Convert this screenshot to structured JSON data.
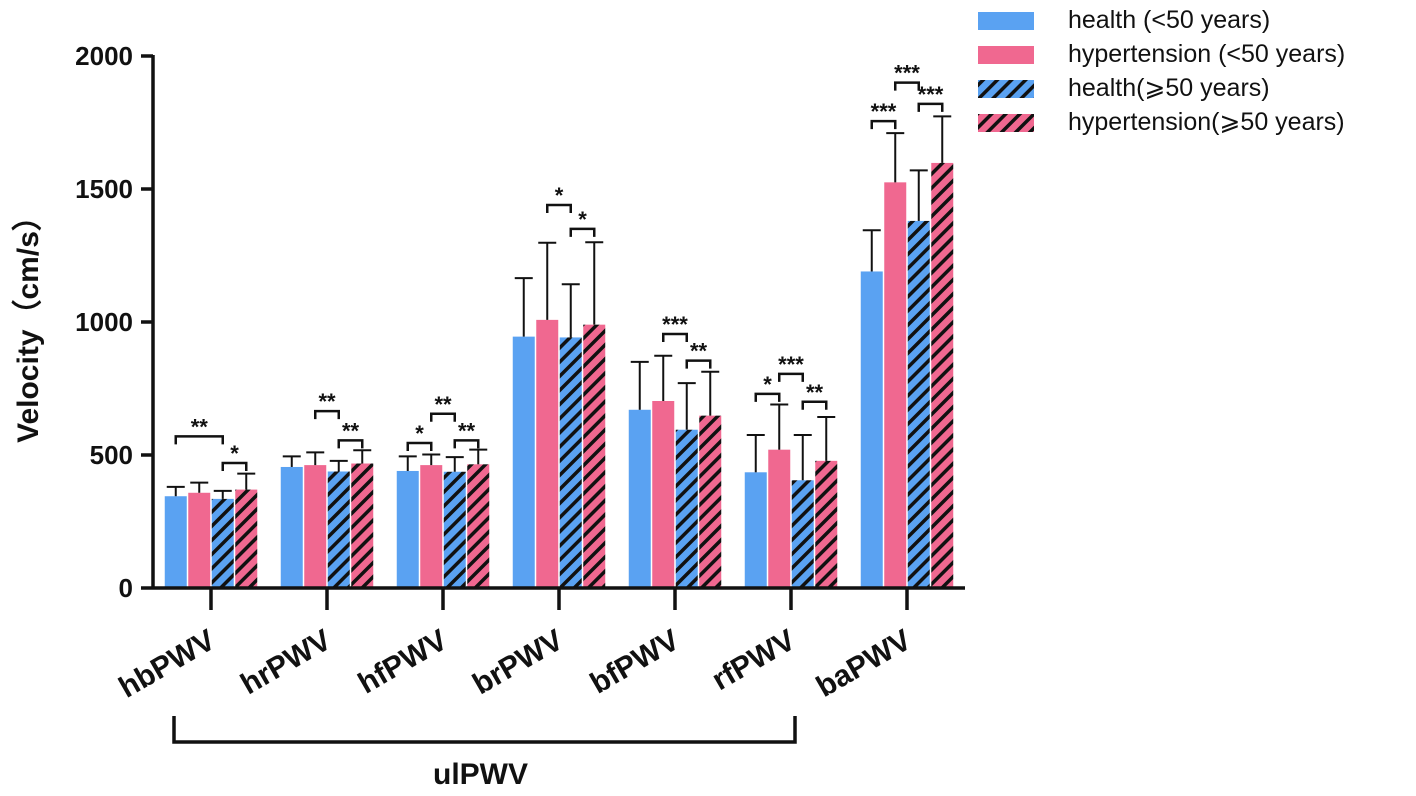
{
  "chart_data": {
    "type": "bar",
    "title": "",
    "xlabel": "",
    "ylabel": "Velocity（cm/s）",
    "ylim": [
      0,
      2000
    ],
    "yticks": [
      "0",
      "500",
      "1000",
      "1500",
      "2000"
    ],
    "ytick_values": [
      0,
      500,
      1000,
      1500,
      2000
    ],
    "grid": false,
    "legend_position": "top-right",
    "categories": [
      "hbPWV",
      "hrPWV",
      "hfPWV",
      "brPWV",
      "bfPWV",
      "rfPWV",
      "baPWV"
    ],
    "series": [
      {
        "name": "health (<50 years)",
        "color": "#5aa2f2",
        "pattern": "solid",
        "values": [
          345,
          455,
          440,
          945,
          670,
          435,
          1190
        ],
        "errors": [
          35,
          40,
          55,
          220,
          180,
          140,
          155
        ]
      },
      {
        "name": "hypertension (<50 years)",
        "color": "#f06890",
        "pattern": "solid",
        "values": [
          358,
          462,
          462,
          1008,
          703,
          520,
          1525
        ],
        "errors": [
          38,
          48,
          40,
          290,
          170,
          170,
          185
        ]
      },
      {
        "name": "health(⩾50 years)",
        "color": "#5aa2f2",
        "pattern": "hatched",
        "values": [
          335,
          438,
          437,
          942,
          595,
          405,
          1380
        ],
        "errors": [
          30,
          40,
          55,
          200,
          175,
          170,
          190
        ]
      },
      {
        "name": "hypertension(⩾50 years)",
        "color": "#f06890",
        "pattern": "hatched",
        "values": [
          370,
          468,
          465,
          990,
          648,
          478,
          1598
        ],
        "errors": [
          60,
          50,
          55,
          310,
          165,
          165,
          175
        ]
      }
    ],
    "significance": [
      {
        "category": 0,
        "from": 0,
        "to": 2,
        "y": 570,
        "label": "**"
      },
      {
        "category": 0,
        "from": 2,
        "to": 3,
        "y": 470,
        "label": "*"
      },
      {
        "category": 1,
        "from": 1,
        "to": 2,
        "y": 665,
        "label": "**"
      },
      {
        "category": 1,
        "from": 2,
        "to": 3,
        "y": 555,
        "label": "**"
      },
      {
        "category": 2,
        "from": 0,
        "to": 1,
        "y": 545,
        "label": "*"
      },
      {
        "category": 2,
        "from": 1,
        "to": 2,
        "y": 655,
        "label": "**"
      },
      {
        "category": 2,
        "from": 2,
        "to": 3,
        "y": 555,
        "label": "**"
      },
      {
        "category": 3,
        "from": 1,
        "to": 2,
        "y": 1440,
        "label": "*"
      },
      {
        "category": 3,
        "from": 2,
        "to": 3,
        "y": 1350,
        "label": "*"
      },
      {
        "category": 4,
        "from": 1,
        "to": 2,
        "y": 955,
        "label": "***"
      },
      {
        "category": 4,
        "from": 2,
        "to": 3,
        "y": 855,
        "label": "**"
      },
      {
        "category": 5,
        "from": 0,
        "to": 1,
        "y": 730,
        "label": "*"
      },
      {
        "category": 5,
        "from": 1,
        "to": 2,
        "y": 805,
        "label": "***"
      },
      {
        "category": 5,
        "from": 2,
        "to": 3,
        "y": 700,
        "label": "**"
      },
      {
        "category": 6,
        "from": 0,
        "to": 1,
        "y": 1755,
        "label": "***"
      },
      {
        "category": 6,
        "from": 1,
        "to": 2,
        "y": 1900,
        "label": "***"
      },
      {
        "category": 6,
        "from": 2,
        "to": 3,
        "y": 1820,
        "label": "***"
      }
    ],
    "group_bracket": {
      "label": "ulPWV",
      "from_category": 0,
      "to_category": 5
    }
  }
}
